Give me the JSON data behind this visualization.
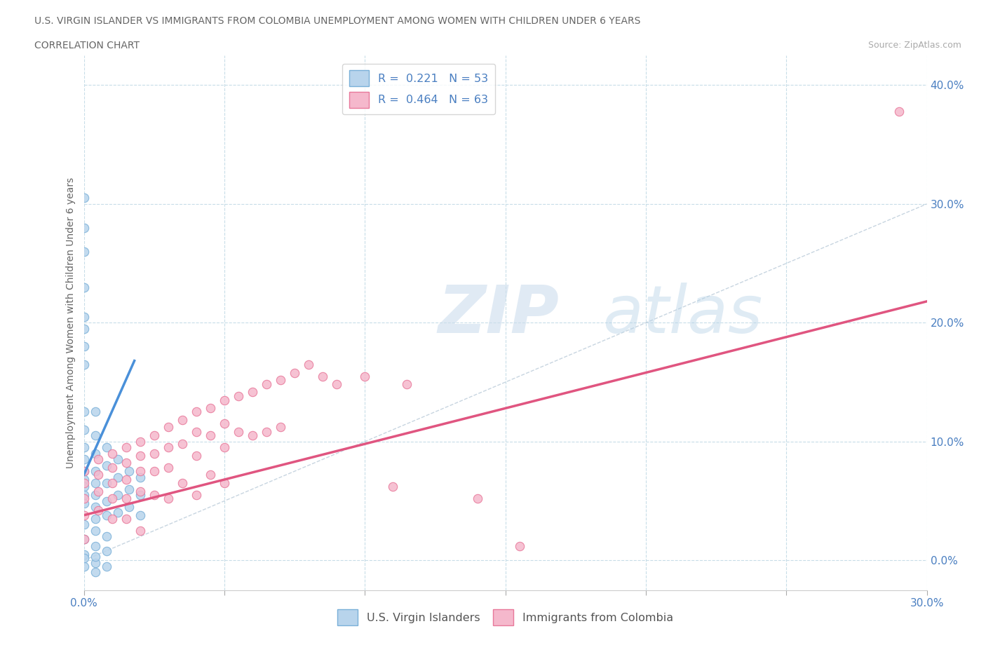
{
  "title_line1": "U.S. VIRGIN ISLANDER VS IMMIGRANTS FROM COLOMBIA UNEMPLOYMENT AMONG WOMEN WITH CHILDREN UNDER 6 YEARS",
  "title_line2": "CORRELATION CHART",
  "source": "Source: ZipAtlas.com",
  "ylabel": "Unemployment Among Women with Children Under 6 years",
  "xlim": [
    0.0,
    0.3
  ],
  "ylim": [
    -0.025,
    0.425
  ],
  "yticks_right": [
    0.0,
    0.1,
    0.2,
    0.3,
    0.4
  ],
  "ytick_labels_right": [
    "0.0%",
    "10.0%",
    "20.0%",
    "30.0%",
    "40.0%"
  ],
  "color_blue_face": "#b8d4ec",
  "color_blue_edge": "#7ab0d8",
  "color_pink_face": "#f5b8cc",
  "color_pink_edge": "#e8789a",
  "color_trendline_blue": "#4a90d9",
  "color_trendline_pink": "#e05580",
  "color_dashed": "#aabfd0",
  "color_grid": "#c8dde8",
  "watermark_color": "#d4e5f2",
  "blue_scatter_x": [
    0.0,
    0.0,
    0.0,
    0.0,
    0.0,
    0.0,
    0.0,
    0.0,
    0.0,
    0.0,
    0.0,
    0.0,
    0.0,
    0.0,
    0.0,
    0.0,
    0.0,
    0.004,
    0.004,
    0.004,
    0.004,
    0.004,
    0.004,
    0.004,
    0.004,
    0.008,
    0.008,
    0.008,
    0.008,
    0.008,
    0.012,
    0.012,
    0.012,
    0.012,
    0.016,
    0.016,
    0.016,
    0.02,
    0.02,
    0.02,
    0.0,
    0.0,
    0.004,
    0.004,
    0.008,
    0.008,
    0.0,
    0.004,
    0.004,
    0.008,
    0.0,
    0.004,
    0.0
  ],
  "blue_scatter_y": [
    0.305,
    0.28,
    0.26,
    0.23,
    0.205,
    0.195,
    0.18,
    0.165,
    0.125,
    0.11,
    0.095,
    0.085,
    0.075,
    0.068,
    0.062,
    0.055,
    0.048,
    0.125,
    0.105,
    0.09,
    0.075,
    0.065,
    0.055,
    0.045,
    0.035,
    0.095,
    0.08,
    0.065,
    0.05,
    0.038,
    0.085,
    0.07,
    0.055,
    0.04,
    0.075,
    0.06,
    0.045,
    0.07,
    0.055,
    0.038,
    0.03,
    0.018,
    0.025,
    0.012,
    0.02,
    0.008,
    -0.005,
    -0.002,
    -0.01,
    -0.005,
    0.005,
    0.003,
    0.002
  ],
  "pink_scatter_x": [
    0.0,
    0.0,
    0.0,
    0.0,
    0.0,
    0.005,
    0.005,
    0.005,
    0.005,
    0.01,
    0.01,
    0.01,
    0.01,
    0.01,
    0.015,
    0.015,
    0.015,
    0.015,
    0.015,
    0.02,
    0.02,
    0.02,
    0.02,
    0.02,
    0.025,
    0.025,
    0.025,
    0.025,
    0.03,
    0.03,
    0.03,
    0.03,
    0.035,
    0.035,
    0.035,
    0.04,
    0.04,
    0.04,
    0.04,
    0.045,
    0.045,
    0.045,
    0.05,
    0.05,
    0.05,
    0.05,
    0.055,
    0.055,
    0.06,
    0.06,
    0.065,
    0.065,
    0.07,
    0.07,
    0.075,
    0.08,
    0.085,
    0.09,
    0.1,
    0.11,
    0.115,
    0.14,
    0.155,
    0.29
  ],
  "pink_scatter_y": [
    0.075,
    0.065,
    0.052,
    0.038,
    0.018,
    0.085,
    0.072,
    0.058,
    0.042,
    0.09,
    0.078,
    0.065,
    0.052,
    0.035,
    0.095,
    0.082,
    0.068,
    0.052,
    0.035,
    0.1,
    0.088,
    0.075,
    0.058,
    0.025,
    0.105,
    0.09,
    0.075,
    0.055,
    0.112,
    0.095,
    0.078,
    0.052,
    0.118,
    0.098,
    0.065,
    0.125,
    0.108,
    0.088,
    0.055,
    0.128,
    0.105,
    0.072,
    0.135,
    0.115,
    0.095,
    0.065,
    0.138,
    0.108,
    0.142,
    0.105,
    0.148,
    0.108,
    0.152,
    0.112,
    0.158,
    0.165,
    0.155,
    0.148,
    0.155,
    0.062,
    0.148,
    0.052,
    0.012,
    0.378
  ],
  "blue_trendline_x": [
    0.0,
    0.018
  ],
  "blue_trendline_y": [
    0.072,
    0.168
  ],
  "pink_trendline_x": [
    0.0,
    0.3
  ],
  "pink_trendline_y": [
    0.038,
    0.218
  ],
  "dashed_line_x": [
    0.0,
    0.3
  ],
  "dashed_line_y": [
    0.0,
    0.3
  ],
  "xtick_positions": [
    0.0,
    0.05,
    0.1,
    0.15,
    0.2,
    0.25,
    0.3
  ],
  "xtick_labels_show": [
    "0.0%",
    "",
    "",
    "",
    "",
    "",
    "30.0%"
  ]
}
